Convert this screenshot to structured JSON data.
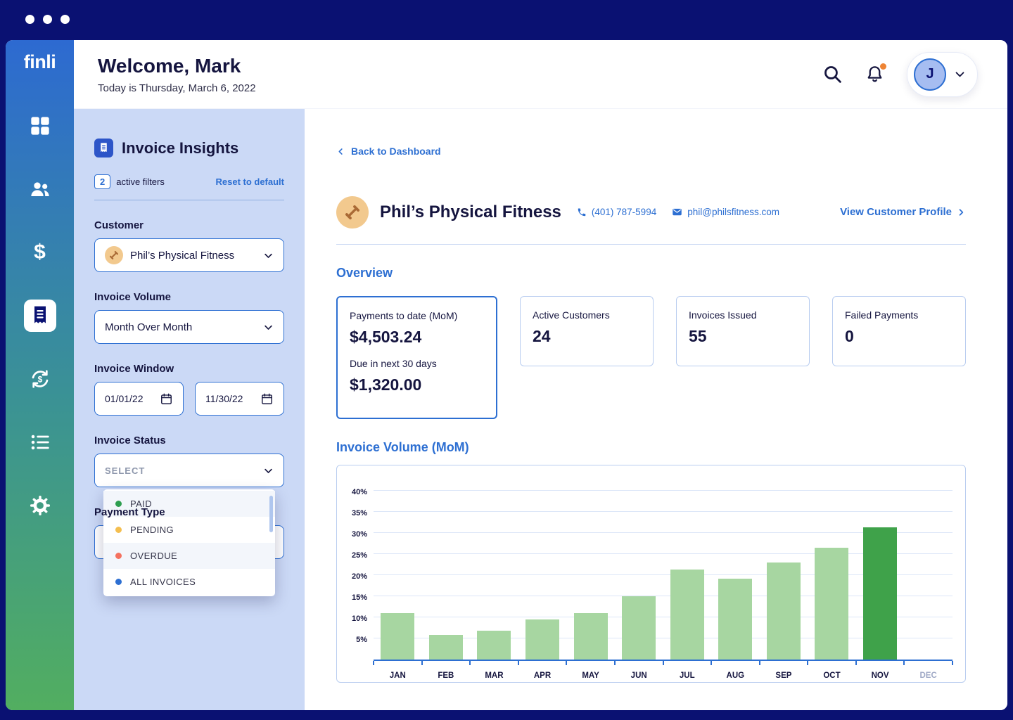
{
  "colors": {
    "accent_blue": "#2D6FD2",
    "frame_navy": "#0A1172",
    "panel_blue": "#CBD9F6",
    "bar_green": "#A7D6A1",
    "bar_highlight_green": "#3FA24A",
    "notification_orange": "#EE8434"
  },
  "sidebar": {
    "logo": "finli",
    "items": [
      "dashboard",
      "customers",
      "payments",
      "invoices",
      "recurring-payments",
      "lists",
      "settings"
    ],
    "active_item": "invoices"
  },
  "header": {
    "title": "Welcome, Mark",
    "subtitle": "Today is Thursday, March 6, 2022",
    "avatar_initial": "J"
  },
  "filter_panel": {
    "title": "Invoice Insights",
    "active_filter_count": "2",
    "active_filter_label": "active filters",
    "reset_label": "Reset to default",
    "customer_label": "Customer",
    "customer_value": "Phil’s Physical Fitness",
    "invoice_volume_label": "Invoice Volume",
    "invoice_volume_value": "Month Over Month",
    "invoice_window_label": "Invoice Window",
    "date_start": "01/01/22",
    "date_end": "11/30/22",
    "invoice_status_label": "Invoice Status",
    "invoice_status_placeholder": "SELECT",
    "status_options": [
      {
        "label": "PAID",
        "color": "#2E9E4F"
      },
      {
        "label": "PENDING",
        "color": "#F4BE4F"
      },
      {
        "label": "OVERDUE",
        "color": "#F4715F"
      },
      {
        "label": "ALL INVOICES",
        "color": "#2D6FD2"
      }
    ],
    "payment_type_label": "Payment Type"
  },
  "main": {
    "back_link": "Back to Dashboard",
    "customer_name": "Phil’s Physical Fitness",
    "customer_phone": "(401) 787-5994",
    "customer_email": "phil@philsfitness.com",
    "profile_link": "View Customer Profile",
    "overview_title": "Overview",
    "primary_card": {
      "label1": "Payments to date (MoM)",
      "value1": "$4,503.24",
      "label2": "Due in next 30 days",
      "value2": "$1,320.00"
    },
    "stat_cards": [
      {
        "label": "Active Customers",
        "value": "24"
      },
      {
        "label": "Invoices Issued",
        "value": "55"
      },
      {
        "label": "Failed Payments",
        "value": "0"
      }
    ],
    "chart_title": "Invoice Volume (MoM)"
  },
  "chart_data": {
    "type": "bar",
    "title": "Invoice Volume (MoM)",
    "categories": [
      "JAN",
      "FEB",
      "MAR",
      "APR",
      "MAY",
      "JUN",
      "JUL",
      "AUG",
      "SEP",
      "OCT",
      "NOV",
      "DEC"
    ],
    "values": [
      10.9,
      5.7,
      6.7,
      9.5,
      11,
      15,
      21.2,
      19.1,
      22.9,
      26.4,
      31.2,
      0
    ],
    "unit": "%",
    "yticks": [
      5,
      10,
      15,
      20,
      25,
      30,
      35,
      40
    ],
    "ylim": [
      0,
      42
    ],
    "grid": true,
    "legend": false,
    "highlight_index": 10,
    "muted_category_index": 11,
    "bar_color": "#A7D6A1",
    "highlight_color": "#3FA24A",
    "xlabel": "",
    "ylabel": ""
  }
}
